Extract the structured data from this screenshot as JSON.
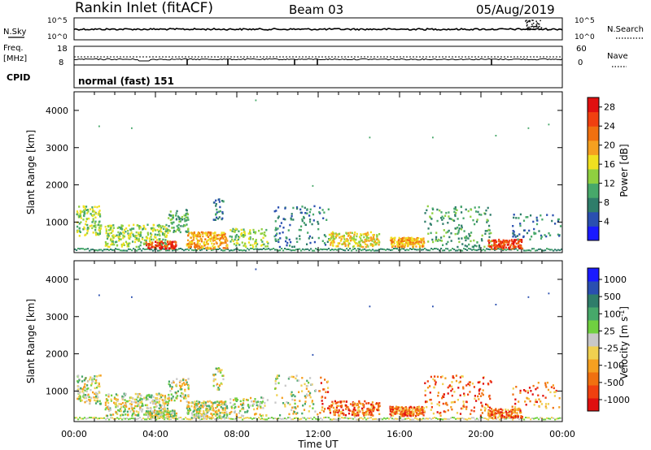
{
  "header": {
    "station": "Rankin Inlet (fitACF)",
    "beam": "Beam 03",
    "date": "05/Aug/2019"
  },
  "small_panels": {
    "nsky_label": "N.Sky",
    "nsky_ticks": [
      "10^5",
      "10^0"
    ],
    "nsearch_label": "N.Search",
    "nsearch_ticks": [
      "10^5",
      "10^0"
    ],
    "freq_label_1": "Freq.",
    "freq_label_2": "[MHz]",
    "freq_ticks": [
      "18",
      "8"
    ],
    "nave_label": "Nave",
    "nave_ticks": [
      "60",
      "0"
    ],
    "cpid_label": "CPID",
    "cpid_value": "normal (fast) 151"
  },
  "colors": {
    "power_scale": [
      "#1a1aff",
      "#2a4fb0",
      "#2f7d6a",
      "#47a86a",
      "#8fd040",
      "#f0e020",
      "#f5a020",
      "#f07010",
      "#f04010",
      "#e01010"
    ],
    "velocity_scale": [
      "#e01010",
      "#f04010",
      "#f07010",
      "#f5a020",
      "#f0d050",
      "#c8c8c8",
      "#70d040",
      "#47a86a",
      "#2f7d6a",
      "#2a4fb0",
      "#1a1aff"
    ]
  },
  "chart_data": [
    {
      "type": "heatmap",
      "title": "",
      "quantity": "Power",
      "xlabel": "",
      "ylabel": "Slant Range [km]",
      "xlim_hours": [
        0,
        24
      ],
      "ylim": [
        180,
        4500
      ],
      "yticks": [
        1000,
        2000,
        3000,
        4000
      ],
      "colorbar": {
        "label": "Power [dB]",
        "ticks": [
          4,
          8,
          12,
          16,
          20,
          24,
          28
        ],
        "range": [
          0,
          30
        ]
      }
    },
    {
      "type": "heatmap",
      "title": "",
      "quantity": "Velocity",
      "xlabel": "Time UT",
      "ylabel": "Slant Range [km]",
      "xlim_hours": [
        0,
        24
      ],
      "ylim": [
        180,
        4500
      ],
      "xticks": [
        "00:00",
        "04:00",
        "08:00",
        "12:00",
        "16:00",
        "20:00",
        "00:00"
      ],
      "yticks": [
        1000,
        2000,
        3000,
        4000
      ],
      "colorbar": {
        "label": "Velocity [m s^-1]",
        "ticks": [
          "1000",
          "500",
          "100",
          "25",
          "-25",
          "-100",
          "-500",
          "-1000"
        ]
      }
    }
  ]
}
